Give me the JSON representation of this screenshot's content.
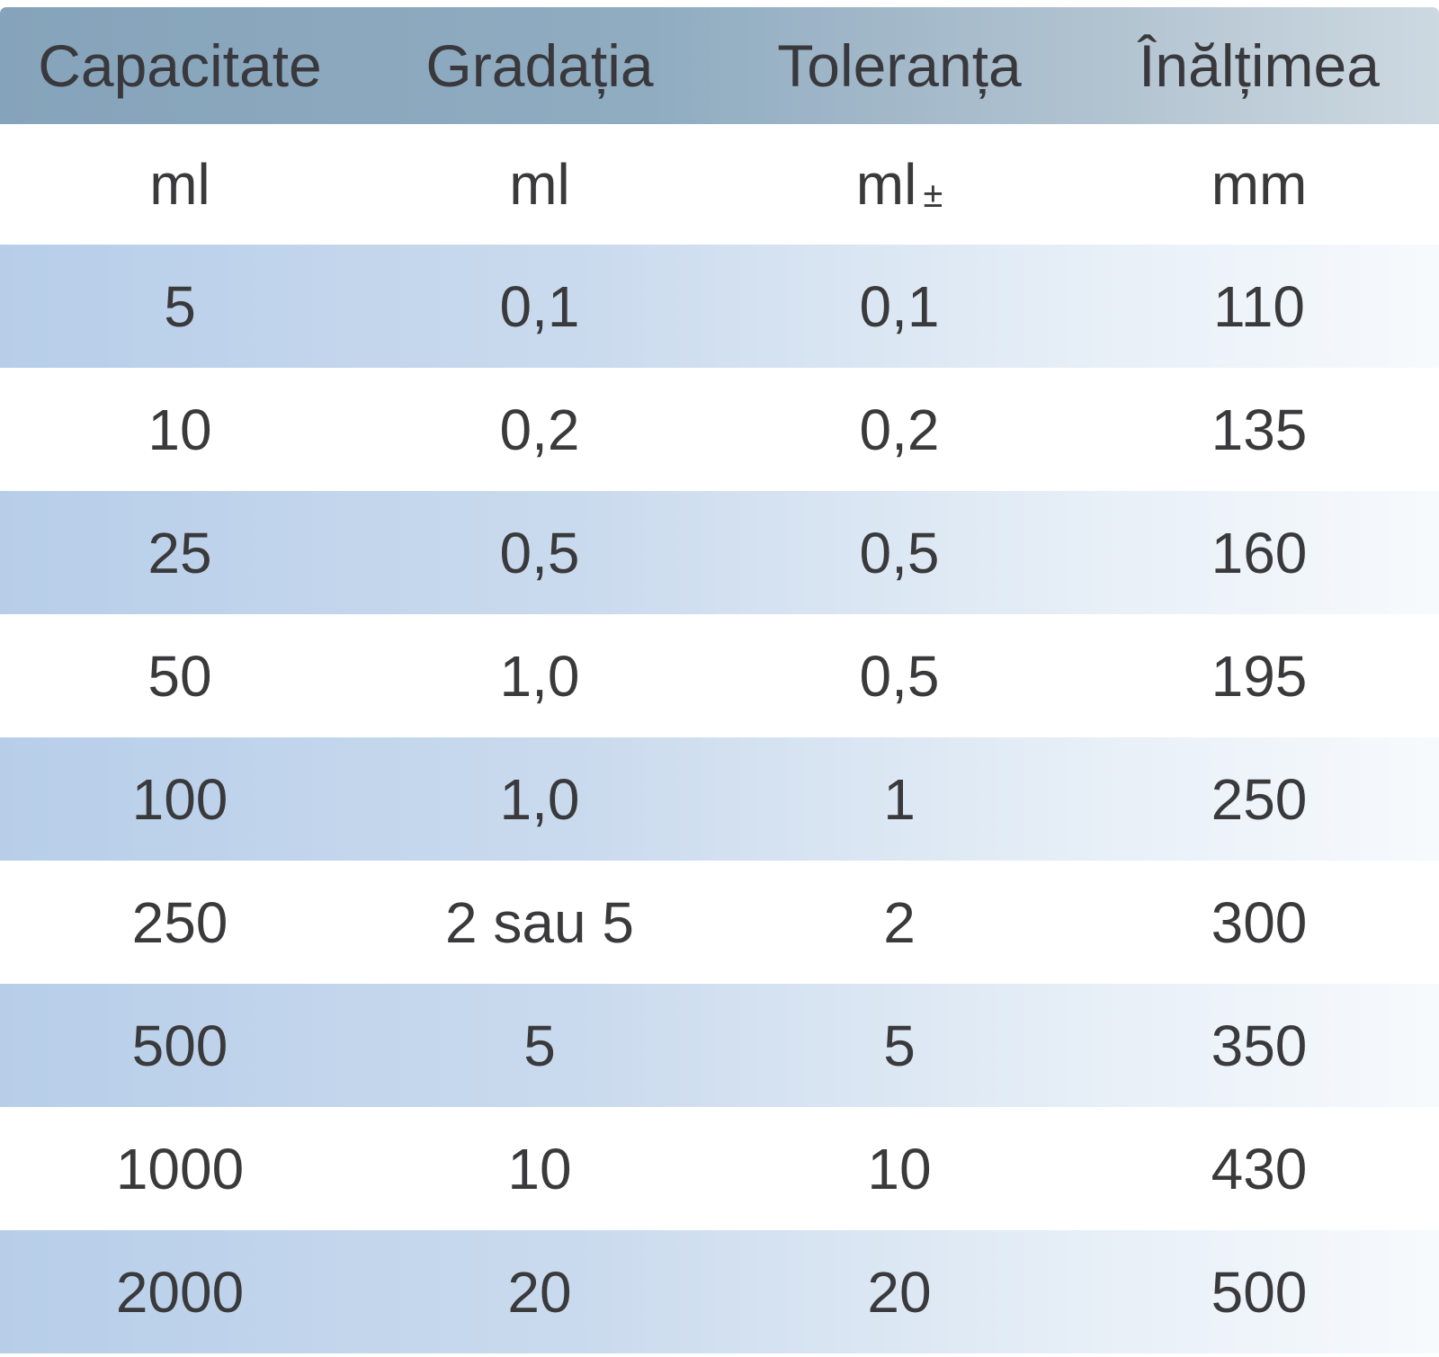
{
  "chart_data": {
    "type": "table",
    "title": "",
    "columns": [
      "Capacitate",
      "Gradația",
      "Toleranța",
      "Înălțimea"
    ],
    "units": [
      "ml",
      "ml",
      "ml ±",
      "mm"
    ],
    "rows": [
      [
        "5",
        "0,1",
        "0,1",
        "110"
      ],
      [
        "10",
        "0,2",
        "0,2",
        "135"
      ],
      [
        "25",
        "0,5",
        "0,5",
        "160"
      ],
      [
        "50",
        "1,0",
        "0,5",
        "195"
      ],
      [
        "100",
        "1,0",
        "1",
        "250"
      ],
      [
        "250",
        "2 sau 5",
        "2",
        "300"
      ],
      [
        "500",
        "5",
        "5",
        "350"
      ],
      [
        "1000",
        "10",
        "10",
        "430"
      ],
      [
        "2000",
        "20",
        "20",
        "500"
      ]
    ],
    "layout": {
      "striped_data_rows": [
        1,
        3,
        5,
        7,
        9
      ],
      "row_background_note": "header and odd data rows have left-to-right blue fade"
    }
  },
  "units_display": {
    "tolerance_main": "ml",
    "tolerance_symbol": "±"
  },
  "colors": {
    "header_gradient_left": "#85a3ba",
    "header_gradient_right": "#cdd9e1",
    "stripe_gradient_left": "#b7cee9",
    "stripe_gradient_right": "#f7fafd",
    "text": "#3a3a3c",
    "background": "#ffffff"
  }
}
